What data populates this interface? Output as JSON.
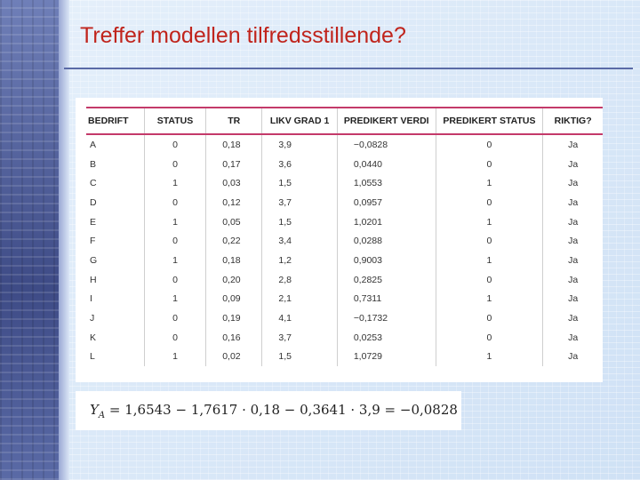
{
  "slide": {
    "title": "Treffer modellen tilfredsstillende?"
  },
  "table": {
    "headers": [
      "BEDRIFT",
      "STATUS",
      "TR",
      "LIKV GRAD 1",
      "PREDIKERT VERDI",
      "PREDIKERT STATUS",
      "RIKTIG?"
    ],
    "rows": [
      [
        "A",
        "0",
        "0,18",
        "3,9",
        "−0,0828",
        "0",
        "Ja"
      ],
      [
        "B",
        "0",
        "0,17",
        "3,6",
        "0,0440",
        "0",
        "Ja"
      ],
      [
        "C",
        "1",
        "0,03",
        "1,5",
        "1,0553",
        "1",
        "Ja"
      ],
      [
        "D",
        "0",
        "0,12",
        "3,7",
        "0,0957",
        "0",
        "Ja"
      ],
      [
        "E",
        "1",
        "0,05",
        "1,5",
        "1,0201",
        "1",
        "Ja"
      ],
      [
        "F",
        "0",
        "0,22",
        "3,4",
        "0,0288",
        "0",
        "Ja"
      ],
      [
        "G",
        "1",
        "0,18",
        "1,2",
        "0,9003",
        "1",
        "Ja"
      ],
      [
        "H",
        "0",
        "0,20",
        "2,8",
        "0,2825",
        "0",
        "Ja"
      ],
      [
        "I",
        "1",
        "0,09",
        "2,1",
        "0,7311",
        "1",
        "Ja"
      ],
      [
        "J",
        "0",
        "0,19",
        "4,1",
        "−0,1732",
        "0",
        "Ja"
      ],
      [
        "K",
        "0",
        "0,16",
        "3,7",
        "0,0253",
        "0",
        "Ja"
      ],
      [
        "L",
        "1",
        "0,02",
        "1,5",
        "1,0729",
        "1",
        "Ja"
      ]
    ]
  },
  "formula": {
    "lhs_var": "Y",
    "lhs_sub": "A",
    "rhs": " = 1,6543 − 1,7617 · 0,18 − 0,3641 · 3,9 = −0,0828"
  },
  "colors": {
    "title": "#c0241c",
    "header_rule": "#c43a6a",
    "left_band": "#4d5d9a"
  }
}
